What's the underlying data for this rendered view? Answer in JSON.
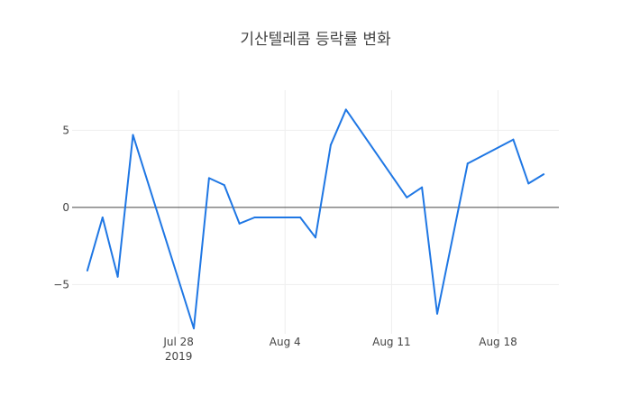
{
  "chart_data": {
    "type": "line",
    "title": "기산텔레콤 등락률 변화",
    "xlabel": "",
    "ylabel": "",
    "grid": true,
    "x_range": [
      "2019-07-21",
      "2019-08-22"
    ],
    "ylim": [
      -8.2,
      7.6
    ],
    "series": [
      {
        "name": "",
        "color": "#1f77e4",
        "x": [
          "2019-07-22",
          "2019-07-23",
          "2019-07-24",
          "2019-07-25",
          "2019-07-29",
          "2019-07-30",
          "2019-07-31",
          "2019-08-01",
          "2019-08-02",
          "2019-08-05",
          "2019-08-06",
          "2019-08-07",
          "2019-08-08",
          "2019-08-12",
          "2019-08-13",
          "2019-08-14",
          "2019-08-16",
          "2019-08-19",
          "2019-08-20",
          "2019-08-21"
        ],
        "values": [
          -4.1,
          -0.65,
          -4.5,
          4.7,
          -7.85,
          1.9,
          1.45,
          -1.05,
          -0.65,
          -0.65,
          -1.95,
          4.05,
          6.35,
          0.65,
          1.3,
          -6.9,
          2.85,
          4.4,
          1.55,
          2.15
        ]
      }
    ],
    "x_ticks": [
      {
        "date": "2019-07-28",
        "label": "Jul 28",
        "sublabel": "2019"
      },
      {
        "date": "2019-08-04",
        "label": "Aug 4",
        "sublabel": ""
      },
      {
        "date": "2019-08-11",
        "label": "Aug 11",
        "sublabel": ""
      },
      {
        "date": "2019-08-18",
        "label": "Aug 18",
        "sublabel": ""
      }
    ],
    "y_ticks": [
      {
        "value": 5,
        "label": "5"
      },
      {
        "value": 0,
        "label": "0"
      },
      {
        "value": -5,
        "label": "−5"
      }
    ]
  }
}
